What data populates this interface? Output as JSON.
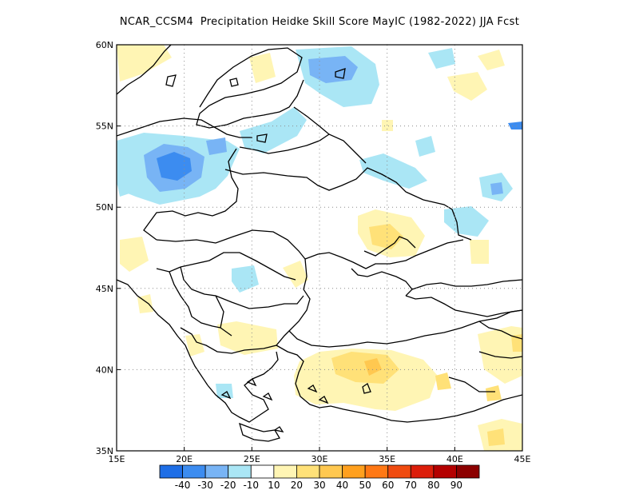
{
  "title": "NCAR_CCSM4  Precipitation Heidke Skill Score MayIC (1982-2022) JJA Fcst",
  "map": {
    "lon_range": [
      15,
      45
    ],
    "lat_range": [
      35,
      60
    ],
    "lon_ticks": [
      "15E",
      "20E",
      "25E",
      "30E",
      "35E",
      "40E",
      "45E"
    ],
    "lat_ticks": [
      "35N",
      "40N",
      "45N",
      "50N",
      "55N",
      "60N"
    ],
    "gridlines": "dotted",
    "colorbar": {
      "labels": [
        "-40",
        "-30",
        "-20",
        "-10",
        "10",
        "20",
        "30",
        "40",
        "50",
        "60",
        "70",
        "80",
        "90"
      ],
      "colors": [
        "#1e6ee6",
        "#3c8cf0",
        "#78b4f5",
        "#aae6f5",
        "#ffffff",
        "#fff5b4",
        "#ffe178",
        "#ffc850",
        "#ffa01e",
        "#ff7814",
        "#f04b0f",
        "#dc1e0a",
        "#b40000",
        "#8c0000"
      ]
    }
  }
}
